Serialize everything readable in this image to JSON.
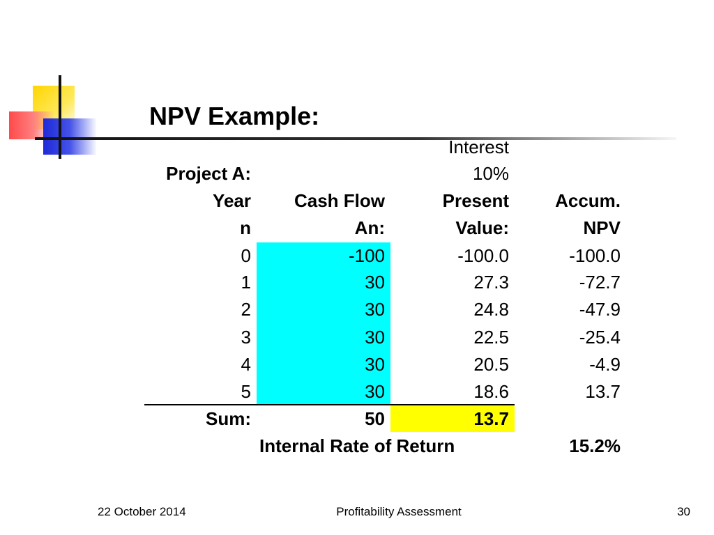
{
  "title": "NPV Example:",
  "interest_label": "Interest",
  "interest_rate": "10%",
  "project_label": "Project A:",
  "headers": {
    "year": [
      "Year",
      "n"
    ],
    "cash_flow": [
      "Cash Flow",
      "An:"
    ],
    "present_value": [
      "Present",
      "Value:"
    ],
    "accum_npv": [
      "Accum.",
      "NPV"
    ]
  },
  "rows": [
    {
      "year": "0",
      "cash_flow": "-100",
      "pv": "-100.0",
      "accum": "-100.0"
    },
    {
      "year": "1",
      "cash_flow": "30",
      "pv": "27.3",
      "accum": "-72.7"
    },
    {
      "year": "2",
      "cash_flow": "30",
      "pv": "24.8",
      "accum": "-47.9"
    },
    {
      "year": "3",
      "cash_flow": "30",
      "pv": "22.5",
      "accum": "-25.4"
    },
    {
      "year": "4",
      "cash_flow": "30",
      "pv": "20.5",
      "accum": "-4.9"
    },
    {
      "year": "5",
      "cash_flow": "30",
      "pv": "18.6",
      "accum": "13.7"
    }
  ],
  "sum": {
    "label": "Sum:",
    "cash_flow": "50",
    "pv": "13.7"
  },
  "irr": {
    "label": "Internal Rate of Return",
    "value": "15.2%"
  },
  "colors": {
    "cash_flow_highlight": "#00ffff",
    "sum_pv_highlight": "#ffff00"
  },
  "footer": {
    "date": "22 October 2014",
    "center": "Profitability Assessment",
    "page": "30"
  }
}
